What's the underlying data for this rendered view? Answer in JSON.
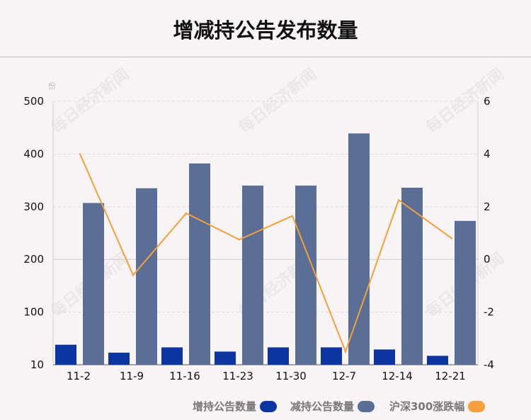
{
  "title": "增减持公告发布数量",
  "watermark": "每日经济新闻",
  "chart_data": {
    "type": "bar",
    "categories": [
      "11-2",
      "11-9",
      "11-16",
      "11-23",
      "11-30",
      "12-7",
      "12-14",
      "12-21"
    ],
    "series": [
      {
        "name": "增持公告数量",
        "type": "bar",
        "axis": "left",
        "color": "#0d35a1",
        "values": [
          38,
          23,
          33,
          25,
          33,
          33,
          29,
          17
        ]
      },
      {
        "name": "减持公告数量",
        "type": "bar",
        "axis": "left",
        "color": "#5b6e96",
        "values": [
          307,
          335,
          382,
          340,
          340,
          439,
          336,
          273
        ]
      },
      {
        "name": "沪深300涨跌幅",
        "type": "line",
        "axis": "right",
        "color": "#f5a03a",
        "values": [
          4.0,
          -0.6,
          1.75,
          0.75,
          1.65,
          -3.5,
          2.25,
          0.8
        ]
      }
    ],
    "y_left": {
      "unit": "份",
      "ticks": [
        10,
        100,
        200,
        300,
        400,
        500
      ],
      "range": [
        0,
        500
      ]
    },
    "y_right": {
      "ticks": [
        -4,
        -2,
        0,
        2,
        4,
        6
      ],
      "range": [
        -4,
        6
      ]
    },
    "grid": true,
    "legend_position": "bottom-right"
  }
}
